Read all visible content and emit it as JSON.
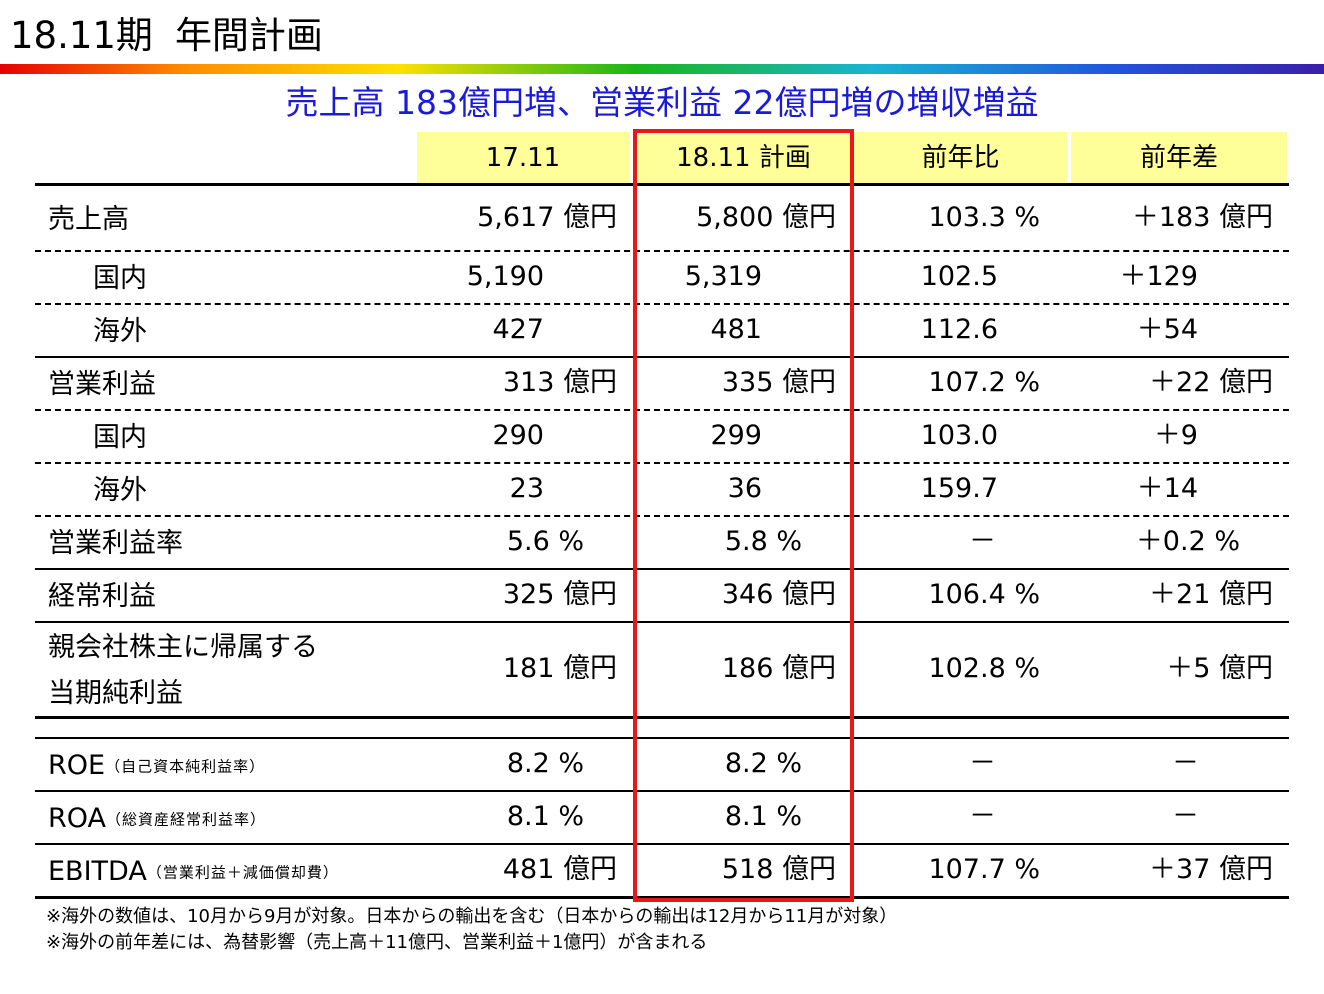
{
  "page": {
    "title_period": "18.11期",
    "title_main": "年間計画",
    "headline": "売上高 183億円増、営業利益 22億円増の増収増益"
  },
  "table": {
    "headers": [
      "17.11",
      "18.11 計画",
      "前年比",
      "前年差"
    ],
    "rows": [
      {
        "label": "売上高",
        "v1": "5,617 億円",
        "v2": "5,800 億円",
        "v3": "103.3 %",
        "v4": "＋183 億円"
      },
      {
        "label": "国内",
        "v1": "5,190",
        "v2": "5,319",
        "v3": "102.5",
        "v4": "＋129"
      },
      {
        "label": "海外",
        "v1": "427",
        "v2": "481",
        "v3": "112.6",
        "v4": "＋54"
      },
      {
        "label": "営業利益",
        "v1": "313 億円",
        "v2": "335 億円",
        "v3": "107.2 %",
        "v4": "＋22 億円"
      },
      {
        "label": "国内",
        "v1": "290",
        "v2": "299",
        "v3": "103.0",
        "v4": "＋9"
      },
      {
        "label": "海外",
        "v1": "23",
        "v2": "36",
        "v3": "159.7",
        "v4": "＋14"
      },
      {
        "label": "営業利益率",
        "v1": "5.6 %",
        "v2": "5.8 %",
        "v3": "－",
        "v4": "＋0.2 %"
      },
      {
        "label": "経常利益",
        "v1": "325 億円",
        "v2": "346 億円",
        "v3": "106.4 %",
        "v4": "＋21 億円"
      },
      {
        "label_line1": "親会社株主に帰属する",
        "label_line2": "当期純利益",
        "v1": "181 億円",
        "v2": "186 億円",
        "v3": "102.8 %",
        "v4": "＋5 億円"
      },
      {
        "label": "ROE",
        "label_sub": "（自己資本純利益率）",
        "v1": "8.2 %",
        "v2": "8.2 %",
        "v3": "－",
        "v4": "－"
      },
      {
        "label": "ROA",
        "label_sub": "（総資産経常利益率）",
        "v1": "8.1 %",
        "v2": "8.1 %",
        "v3": "－",
        "v4": "－"
      },
      {
        "label": "EBITDA",
        "label_sub": "（営業利益＋減価償却費）",
        "v1": "481 億円",
        "v2": "518 億円",
        "v3": "107.7 %",
        "v4": "＋37 億円"
      }
    ]
  },
  "notes": [
    "※海外の数値は、10月から9月が対象。日本からの輸出を含む（日本からの輸出は12月から11月が対象）",
    "※海外の前年差には、為替影響（売上高＋11億円、営業利益＋1億円）が含まれる"
  ],
  "colors": {
    "headline": "#1a1ad8",
    "header_fill": "#ffff99",
    "highlight_border": "#e81818"
  }
}
